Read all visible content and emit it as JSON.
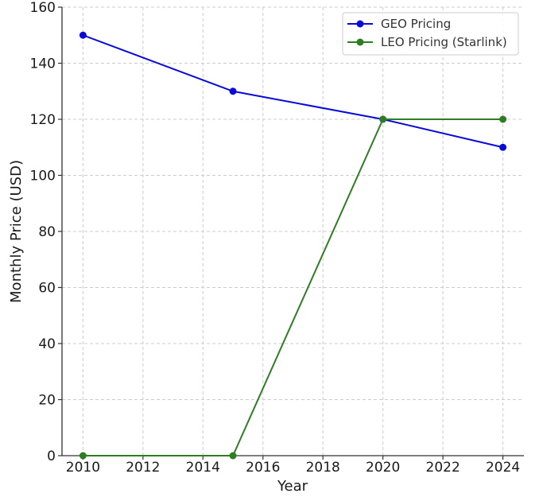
{
  "chart_data": {
    "type": "line",
    "title": "",
    "xlabel": "Year",
    "ylabel": "Monthly Price (USD)",
    "xlim": [
      2009.3,
      2024.7
    ],
    "ylim": [
      0,
      160
    ],
    "xticks": [
      2010,
      2012,
      2014,
      2016,
      2018,
      2020,
      2022,
      2024
    ],
    "yticks": [
      0,
      20,
      40,
      60,
      80,
      100,
      120,
      140,
      160
    ],
    "grid": true,
    "legend_position": "top-right",
    "series": [
      {
        "name": "GEO Pricing",
        "color": "#0a0ad8",
        "x": [
          2010,
          2015,
          2020,
          2024
        ],
        "y": [
          150,
          130,
          120,
          110
        ]
      },
      {
        "name": "LEO Pricing (Starlink)",
        "color": "#2e7d22",
        "x": [
          2010,
          2015,
          2020,
          2024
        ],
        "y": [
          0,
          0,
          120,
          120
        ]
      }
    ]
  }
}
